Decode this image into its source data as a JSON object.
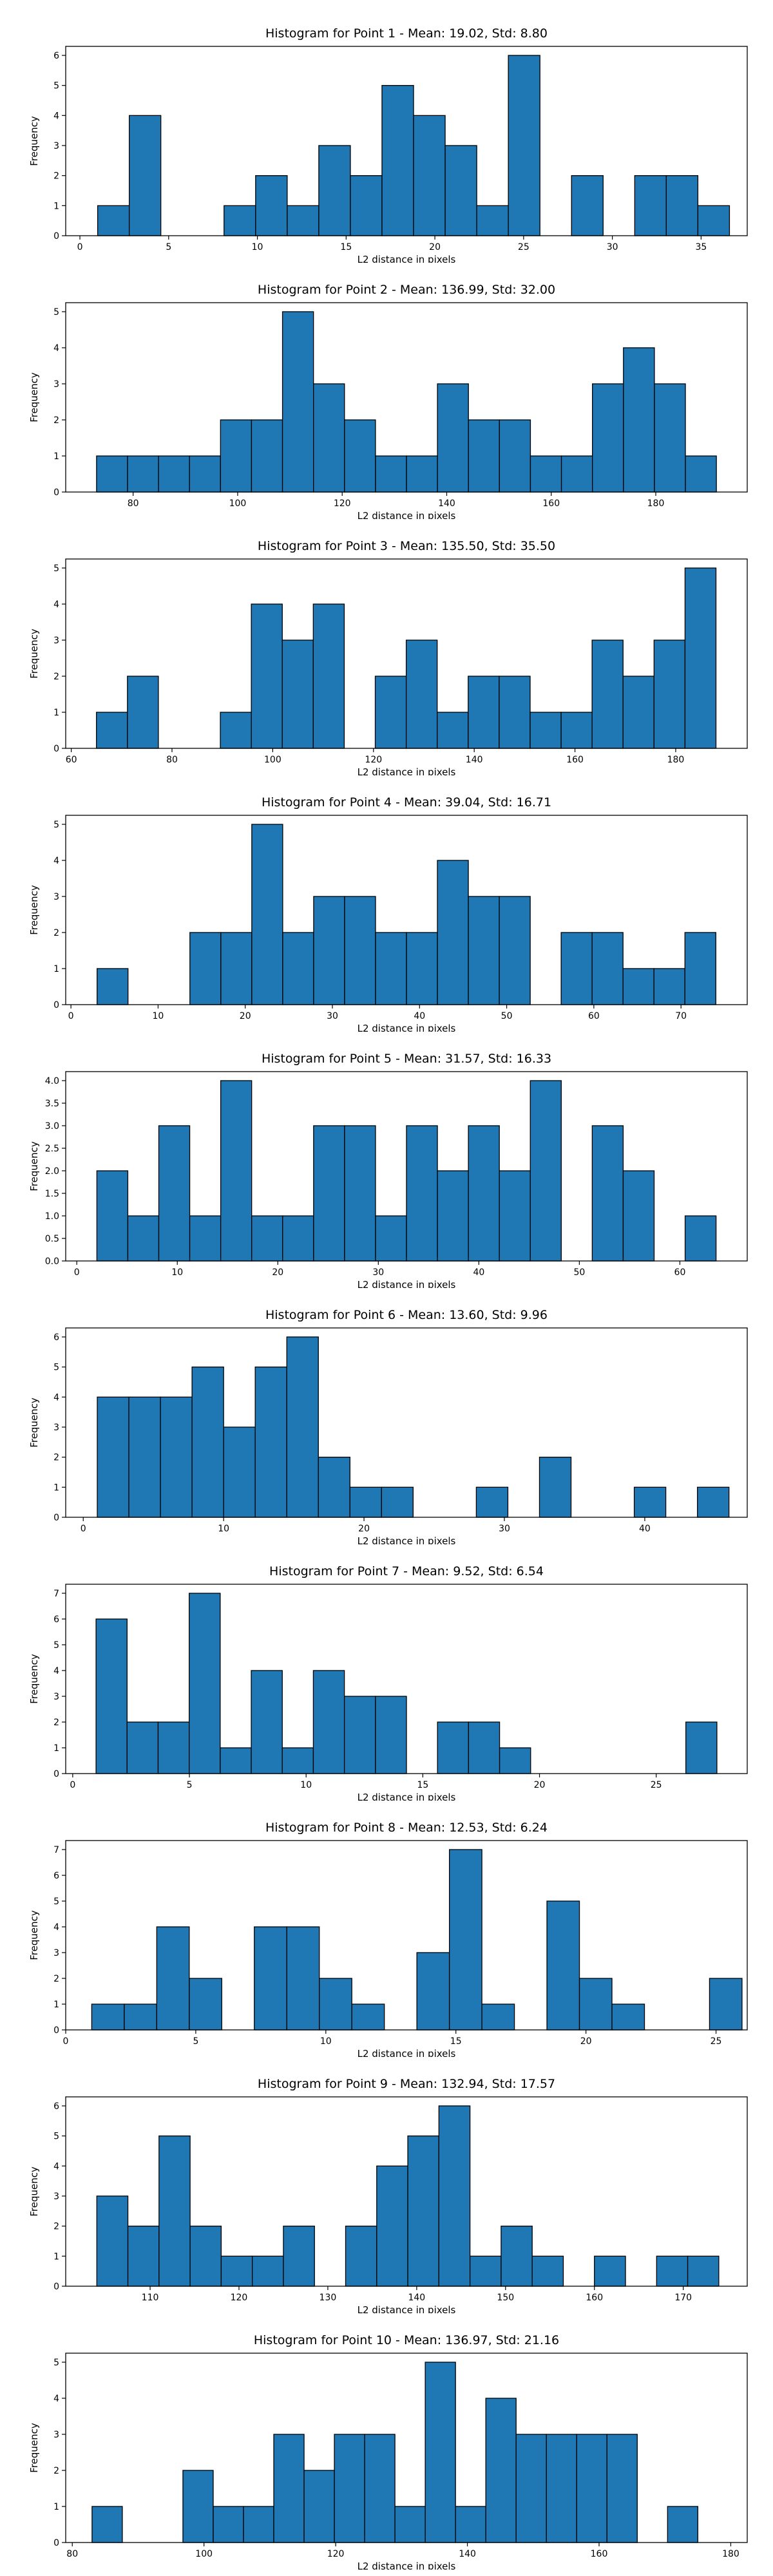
{
  "chart_data": [
    {
      "type": "bar",
      "title": "Histogram for Point 1 - Mean: 19.02, Std: 8.80",
      "xlabel": "L2 distance in pixels",
      "ylabel": "Frequency",
      "bin_start": 1.0,
      "bin_width": 1.78,
      "values": [
        1,
        4,
        0,
        0,
        1,
        2,
        1,
        3,
        2,
        5,
        4,
        3,
        1,
        6,
        0,
        2,
        0,
        2,
        2,
        1
      ],
      "xlim": [
        -0.8,
        37.6
      ],
      "ylim": [
        0,
        6.3
      ],
      "xticks": [
        0,
        5,
        10,
        15,
        20,
        25,
        30,
        35
      ],
      "yticks": [
        0,
        1,
        2,
        3,
        4,
        5,
        6
      ],
      "xtick_labels": [
        "0",
        "5",
        "10",
        "15",
        "20",
        "25",
        "30",
        "35"
      ],
      "ytick_labels": [
        "0",
        "1",
        "2",
        "3",
        "4",
        "5",
        "6"
      ]
    },
    {
      "type": "bar",
      "title": "Histogram for Point 2 - Mean: 136.99, Std: 32.00",
      "xlabel": "L2 distance in pixels",
      "ylabel": "Frequency",
      "bin_start": 73.0,
      "bin_width": 5.93,
      "values": [
        1,
        1,
        1,
        1,
        2,
        2,
        5,
        3,
        2,
        1,
        1,
        3,
        2,
        2,
        1,
        1,
        3,
        4,
        3,
        1
      ],
      "xlim": [
        67.1,
        197.5
      ],
      "ylim": [
        0,
        5.25
      ],
      "xticks": [
        80,
        100,
        120,
        140,
        160,
        180
      ],
      "yticks": [
        0,
        1,
        2,
        3,
        4,
        5
      ],
      "xtick_labels": [
        "80",
        "100",
        "120",
        "140",
        "160",
        "180"
      ],
      "ytick_labels": [
        "0",
        "1",
        "2",
        "3",
        "4",
        "5"
      ]
    },
    {
      "type": "bar",
      "title": "Histogram for Point 3 - Mean: 135.50, Std: 35.50",
      "xlabel": "L2 distance in pixels",
      "ylabel": "Frequency",
      "bin_start": 65.0,
      "bin_width": 6.15,
      "values": [
        1,
        2,
        0,
        0,
        1,
        4,
        3,
        4,
        0,
        2,
        3,
        1,
        2,
        2,
        1,
        1,
        3,
        2,
        3,
        5
      ],
      "xlim": [
        58.9,
        194.2
      ],
      "ylim": [
        0,
        5.25
      ],
      "xticks": [
        60,
        80,
        100,
        120,
        140,
        160,
        180
      ],
      "yticks": [
        0,
        1,
        2,
        3,
        4,
        5
      ],
      "xtick_labels": [
        "60",
        "80",
        "100",
        "120",
        "140",
        "160",
        "180"
      ],
      "ytick_labels": [
        "0",
        "1",
        "2",
        "3",
        "4",
        "5"
      ]
    },
    {
      "type": "bar",
      "title": "Histogram for Point 4 - Mean: 39.04, Std: 16.71",
      "xlabel": "L2 distance in pixels",
      "ylabel": "Frequency",
      "bin_start": 3.0,
      "bin_width": 3.55,
      "values": [
        1,
        0,
        0,
        2,
        2,
        5,
        2,
        3,
        3,
        2,
        2,
        4,
        3,
        3,
        0,
        2,
        2,
        1,
        1,
        2
      ],
      "xlim": [
        -0.6,
        77.6
      ],
      "ylim": [
        0,
        5.25
      ],
      "xticks": [
        0,
        10,
        20,
        30,
        40,
        50,
        60,
        70
      ],
      "yticks": [
        0,
        1,
        2,
        3,
        4,
        5
      ],
      "xtick_labels": [
        "0",
        "10",
        "20",
        "30",
        "40",
        "50",
        "60",
        "70"
      ],
      "ytick_labels": [
        "0",
        "1",
        "2",
        "3",
        "4",
        "5"
      ]
    },
    {
      "type": "bar",
      "title": "Histogram for Point 5 - Mean: 31.57, Std: 16.33",
      "xlabel": "L2 distance in pixels",
      "ylabel": "Frequency",
      "bin_start": 2.0,
      "bin_width": 3.08,
      "values": [
        2,
        1,
        3,
        1,
        4,
        1,
        1,
        3,
        3,
        1,
        3,
        2,
        3,
        2,
        4,
        0,
        3,
        2,
        0,
        1
      ],
      "xlim": [
        -1.1,
        66.7
      ],
      "ylim": [
        0,
        4.2
      ],
      "xticks": [
        0,
        10,
        20,
        30,
        40,
        50,
        60
      ],
      "yticks": [
        0,
        0.5,
        1,
        1.5,
        2,
        2.5,
        3,
        3.5,
        4
      ],
      "xtick_labels": [
        "0",
        "10",
        "20",
        "30",
        "40",
        "50",
        "60"
      ],
      "ytick_labels": [
        "0.0",
        "0.5",
        "1.0",
        "1.5",
        "2.0",
        "2.5",
        "3.0",
        "3.5",
        "4.0"
      ]
    },
    {
      "type": "bar",
      "title": "Histogram for Point 6 - Mean: 13.60, Std: 9.96",
      "xlabel": "L2 distance in pixels",
      "ylabel": "Frequency",
      "bin_start": 1.0,
      "bin_width": 2.25,
      "values": [
        4,
        4,
        4,
        5,
        3,
        5,
        6,
        2,
        1,
        1,
        0,
        0,
        1,
        0,
        2,
        0,
        0,
        1,
        0,
        1
      ],
      "xlim": [
        -1.25,
        47.3
      ],
      "ylim": [
        0,
        6.3
      ],
      "xticks": [
        0,
        10,
        20,
        30,
        40
      ],
      "yticks": [
        0,
        1,
        2,
        3,
        4,
        5,
        6
      ],
      "xtick_labels": [
        "0",
        "10",
        "20",
        "30",
        "40"
      ],
      "ytick_labels": [
        "0",
        "1",
        "2",
        "3",
        "4",
        "5",
        "6"
      ]
    },
    {
      "type": "bar",
      "title": "Histogram for Point 7 - Mean: 9.52, Std: 6.54",
      "xlabel": "L2 distance in pixels",
      "ylabel": "Frequency",
      "bin_start": 1.0,
      "bin_width": 1.33,
      "values": [
        6,
        2,
        2,
        7,
        1,
        4,
        1,
        4,
        3,
        3,
        0,
        2,
        2,
        1,
        0,
        0,
        0,
        0,
        0,
        2
      ],
      "xlim": [
        -0.3,
        28.9
      ],
      "ylim": [
        0,
        7.35
      ],
      "xticks": [
        0,
        5,
        10,
        15,
        20,
        25
      ],
      "yticks": [
        0,
        1,
        2,
        3,
        4,
        5,
        6,
        7
      ],
      "xtick_labels": [
        "0",
        "5",
        "10",
        "15",
        "20",
        "25"
      ],
      "ytick_labels": [
        "0",
        "1",
        "2",
        "3",
        "4",
        "5",
        "6",
        "7"
      ]
    },
    {
      "type": "bar",
      "title": "Histogram for Point 8 - Mean: 12.53, Std: 6.24",
      "xlabel": "L2 distance in pixels",
      "ylabel": "Frequency",
      "bin_start": 1.0,
      "bin_width": 1.25,
      "values": [
        1,
        1,
        4,
        2,
        0,
        4,
        4,
        2,
        1,
        0,
        3,
        7,
        1,
        0,
        5,
        2,
        1,
        0,
        0,
        2
      ],
      "xlim": [
        0.0,
        26.2
      ],
      "ylim": [
        0,
        7.35
      ],
      "xticks": [
        0,
        5,
        10,
        15,
        20,
        25
      ],
      "yticks": [
        0,
        1,
        2,
        3,
        4,
        5,
        6,
        7
      ],
      "xtick_labels": [
        "0",
        "5",
        "10",
        "15",
        "20",
        "25"
      ],
      "ytick_labels": [
        "0",
        "1",
        "2",
        "3",
        "4",
        "5",
        "6",
        "7"
      ]
    },
    {
      "type": "bar",
      "title": "Histogram for Point 9 - Mean: 132.94, Std: 17.57",
      "xlabel": "L2 distance in pixels",
      "ylabel": "Frequency",
      "bin_start": 104.0,
      "bin_width": 3.5,
      "values": [
        3,
        2,
        5,
        2,
        1,
        1,
        2,
        0,
        2,
        4,
        5,
        6,
        1,
        2,
        1,
        0,
        1,
        0,
        1,
        1
      ],
      "xlim": [
        100.5,
        177.2
      ],
      "ylim": [
        0,
        6.3
      ],
      "xticks": [
        110,
        120,
        130,
        140,
        150,
        160,
        170
      ],
      "yticks": [
        0,
        1,
        2,
        3,
        4,
        5,
        6
      ],
      "xtick_labels": [
        "110",
        "120",
        "130",
        "140",
        "150",
        "160",
        "170"
      ],
      "ytick_labels": [
        "0",
        "1",
        "2",
        "3",
        "4",
        "5",
        "6"
      ]
    },
    {
      "type": "bar",
      "title": "Histogram for Point 10 - Mean: 136.97, Std: 21.16",
      "xlabel": "L2 distance in pixels",
      "ylabel": "Frequency",
      "bin_start": 83.0,
      "bin_width": 4.6,
      "values": [
        1,
        0,
        0,
        2,
        1,
        1,
        3,
        2,
        3,
        3,
        1,
        5,
        1,
        4,
        3,
        3,
        3,
        3,
        0,
        1
      ],
      "xlim": [
        79.0,
        182.5
      ],
      "ylim": [
        0,
        5.25
      ],
      "xticks": [
        80,
        100,
        120,
        140,
        160,
        180
      ],
      "yticks": [
        0,
        1,
        2,
        3,
        4,
        5
      ],
      "xtick_labels": [
        "80",
        "100",
        "120",
        "140",
        "160",
        "180"
      ],
      "ytick_labels": [
        "0",
        "1",
        "2",
        "3",
        "4",
        "5"
      ]
    }
  ],
  "colors": {
    "bar_fill": "#1f77b4",
    "bar_edge": "#000000"
  }
}
